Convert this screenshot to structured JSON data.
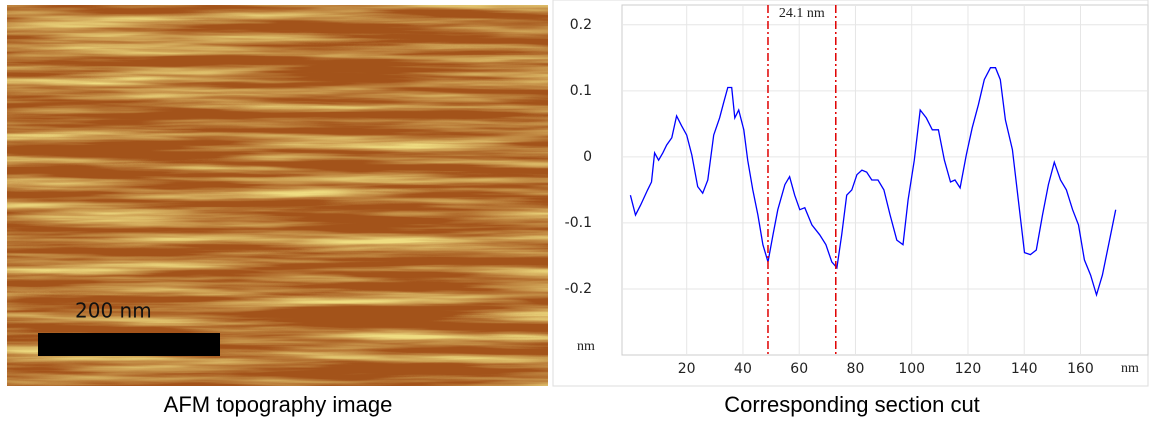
{
  "image": {
    "scale_bar_label": "200 nm",
    "caption": "AFM topography image"
  },
  "chart_data": {
    "type": "line",
    "caption": "Corresponding section cut",
    "x_label": "nm",
    "y_label": "nm",
    "annotation": "24.1 nm",
    "cursors": [
      48.9,
      73.0
    ],
    "cursor_color": "#e00000",
    "color": "#0000ff",
    "grid": true,
    "xlim": [
      -3,
      184
    ],
    "ylim": [
      -0.3,
      0.23
    ],
    "xticks": [
      20,
      40,
      60,
      80,
      100,
      120,
      140,
      160
    ],
    "yticks": [
      0.2,
      0.1,
      0,
      -0.1,
      -0.2
    ],
    "x": [
      0,
      1.8,
      3.6,
      6.1,
      7.5,
      8.6,
      10,
      11.5,
      12.9,
      14.7,
      16.4,
      18.2,
      20,
      21.8,
      23.9,
      25.7,
      27.5,
      29.6,
      31.7,
      33.2,
      34.6,
      36,
      37.1,
      38.5,
      40.3,
      41.7,
      43.5,
      45.3,
      47.1,
      48.9,
      50.7,
      52.4,
      54.9,
      56.6,
      58.4,
      60.2,
      62,
      64.5,
      67.3,
      69.5,
      71.6,
      73.4,
      75.1,
      76.9,
      78.7,
      80.5,
      82.3,
      84,
      85.8,
      88,
      90.1,
      92.3,
      94.7,
      96.9,
      98.7,
      100.9,
      103,
      105.2,
      107.3,
      109.5,
      111.6,
      113.8,
      115.4,
      117.2,
      119.4,
      121.5,
      123.7,
      125.8,
      128,
      129.8,
      131.5,
      133.3,
      135.8,
      137.9,
      140.1,
      142.2,
      144.3,
      146.5,
      148.6,
      150.7,
      152.9,
      155,
      157.2,
      159.3,
      161.4,
      163.6,
      165.7,
      167.8,
      170,
      172.5
    ],
    "values": [
      -0.058,
      -0.088,
      -0.073,
      -0.05,
      -0.038,
      0.006,
      -0.005,
      0.006,
      0.018,
      0.029,
      0.062,
      0.047,
      0.033,
      0.003,
      -0.045,
      -0.055,
      -0.035,
      0.033,
      0.059,
      0.083,
      0.105,
      0.105,
      0.059,
      0.071,
      0.041,
      -0.005,
      -0.05,
      -0.088,
      -0.133,
      -0.159,
      -0.118,
      -0.08,
      -0.042,
      -0.03,
      -0.058,
      -0.08,
      -0.077,
      -0.103,
      -0.118,
      -0.133,
      -0.159,
      -0.168,
      -0.118,
      -0.058,
      -0.05,
      -0.027,
      -0.02,
      -0.023,
      -0.035,
      -0.035,
      -0.05,
      -0.088,
      -0.126,
      -0.133,
      -0.065,
      -0.005,
      0.071,
      0.059,
      0.041,
      0.041,
      -0.005,
      -0.038,
      -0.035,
      -0.047,
      0.003,
      0.044,
      0.079,
      0.117,
      0.135,
      0.135,
      0.117,
      0.056,
      0.011,
      -0.065,
      -0.145,
      -0.148,
      -0.141,
      -0.088,
      -0.042,
      -0.008,
      -0.035,
      -0.05,
      -0.08,
      -0.103,
      -0.156,
      -0.179,
      -0.209,
      -0.179,
      -0.133,
      -0.08
    ]
  }
}
